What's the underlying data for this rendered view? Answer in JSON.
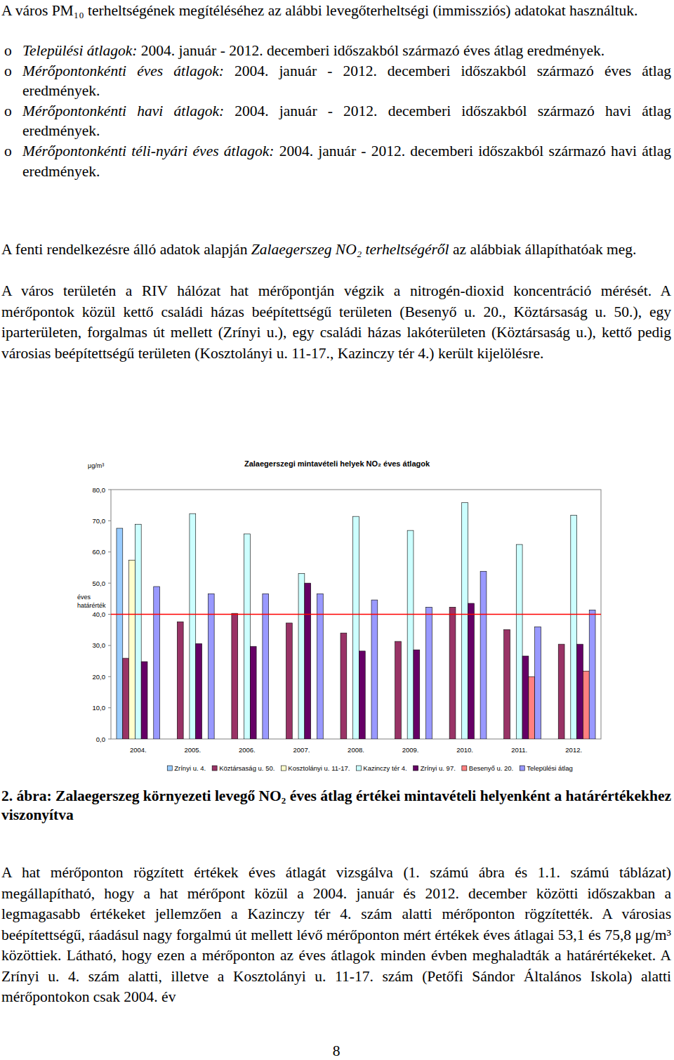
{
  "document": {
    "intro": {
      "runs": [
        {
          "text": "A város PM₁₀ terheltségének megítéléséhez az alábbi levegőterheltségi (immissziós) adatokat használtuk."
        }
      ]
    },
    "list": {
      "marker": "o",
      "items": [
        {
          "runs": [
            {
              "text": "Települési átlagok:",
              "italic": true
            },
            {
              "text": " 2004. január - 2012. decemberi időszakból származó éves átlag eredmények."
            }
          ]
        },
        {
          "runs": [
            {
              "text": "Mérőpontonkénti éves átlagok:",
              "italic": true
            },
            {
              "text": " 2004. január - 2012. decemberi időszakból származó éves átlag eredmények."
            }
          ]
        },
        {
          "runs": [
            {
              "text": "Mérőpontonkénti havi átlagok:",
              "italic": true
            },
            {
              "text": " 2004. január - 2012. decemberi időszakból származó havi átlag eredmények."
            }
          ]
        },
        {
          "runs": [
            {
              "text": "Mérőpontonkénti téli-nyári éves átlagok:",
              "italic": true
            },
            {
              "text": " 2004. január - 2012. decemberi időszakból származó havi átlag eredmények."
            }
          ]
        }
      ]
    },
    "paragraphs": [
      {
        "runs": [
          {
            "text": "A fenti rendelkezésre álló adatok alapján "
          },
          {
            "text": "Zalaegerszeg NO₂ terheltségéről",
            "italic": true
          },
          {
            "text": " az alábbiak állapíthatóak meg."
          }
        ]
      },
      {
        "runs": [
          {
            "text": "A város területén a RIV hálózat hat mérőpontján végzik a nitrogén-dioxid koncentráció mérését. A mérőpontok közül kettő családi házas beépítettségű területen (Besenyő u. 20., Köztársaság u. 50.), egy iparterületen, forgalmas út mellett (Zrínyi u.), egy családi házas lakóterületen (Köztársaság u.), kettő pedig városias beépítettségű területen (Kosztolányi u. 11-17., Kazinczy tér 4.) került kijelölésre."
          }
        ]
      }
    ],
    "caption": "2. ábra: Zalaegerszeg környezeti levegő NO₂ éves átlag értékei mintavételi helyenként a határértékekhez viszonyítva",
    "closing": {
      "runs": [
        {
          "text": "A hat mérőponton rögzített értékek éves átlagát vizsgálva (1. számú ábra és 1.1. számú táblázat) megállapítható, hogy a hat mérőpont közül a 2004. január és 2012. december közötti időszakban a legmagasabb értékeket jellemzően a Kazinczy tér 4. szám alatti mérőponton rögzítették. A városias beépítettségű, ráadásul nagy forgalmú út mellett lévő mérőponton mért értékek éves átlagai 53,1 és 75,8 μg/m³ közöttiek. Látható, hogy ezen a mérőponton az éves átlagok minden évben meghaladták a határértékeket. A Zrínyi u. 4. szám alatti, illetve a Kosztolányi u. 11-17. szám (Petőfi Sándor Általános Iskola) alatti mérőpontokon csak 2004. év"
        }
      ]
    },
    "page_number": "8"
  },
  "chart_data": {
    "type": "bar",
    "title": "Zalaegerszegi mintavételi helyek NO₂ éves átlagok",
    "y_label": "μg/m³",
    "categories": [
      "2004.",
      "2005.",
      "2006.",
      "2007.",
      "2008.",
      "2009.",
      "2010.",
      "2011.",
      "2012."
    ],
    "series": [
      {
        "name": "Zrínyi u. 4.",
        "color": "#99ccff",
        "values": [
          67.6,
          null,
          null,
          null,
          null,
          null,
          null,
          null,
          null
        ]
      },
      {
        "name": "Köztársaság u. 50.",
        "color": "#993366",
        "values": [
          25.9,
          37.6,
          40.3,
          37.2,
          34.0,
          31.3,
          42.3,
          35.1,
          30.4
        ]
      },
      {
        "name": "Kosztolányi u. 11-17.",
        "color": "#ffffcc",
        "values": [
          57.4,
          null,
          null,
          null,
          null,
          null,
          null,
          null,
          null
        ]
      },
      {
        "name": "Kazinczy tér 4.",
        "color": "#ccffff",
        "values": [
          68.9,
          72.3,
          65.8,
          53.1,
          71.4,
          66.9,
          75.8,
          62.4,
          71.8
        ]
      },
      {
        "name": "Zrínyi u. 97.",
        "color": "#660066",
        "values": [
          24.8,
          30.6,
          29.7,
          50.0,
          28.2,
          28.6,
          43.5,
          26.6,
          30.4
        ]
      },
      {
        "name": "Besenyő u. 20.",
        "color": "#ff8080",
        "values": [
          null,
          null,
          null,
          null,
          null,
          null,
          null,
          20.0,
          21.8
        ]
      },
      {
        "name": "Települési átlag",
        "color": "#9999ff",
        "values": [
          48.9,
          46.6,
          46.6,
          46.6,
          44.6,
          42.3,
          53.8,
          36.0,
          41.4
        ]
      }
    ],
    "ylim": [
      0,
      80
    ],
    "yticks": [
      {
        "value": 0,
        "label": "0,0"
      },
      {
        "value": 10,
        "label": "10,0"
      },
      {
        "value": 20,
        "label": "20,0"
      },
      {
        "value": 30,
        "label": "30,0"
      },
      {
        "value": 40,
        "label": "40,0"
      },
      {
        "value": 50,
        "label": "50,0"
      },
      {
        "value": 60,
        "label": "60,0"
      },
      {
        "value": 70,
        "label": "70,0"
      },
      {
        "value": 80,
        "label": "80,0"
      }
    ],
    "annotations": [
      {
        "text": "éves határérték",
        "y": 40
      }
    ],
    "grid": false,
    "legend": "bottom"
  }
}
